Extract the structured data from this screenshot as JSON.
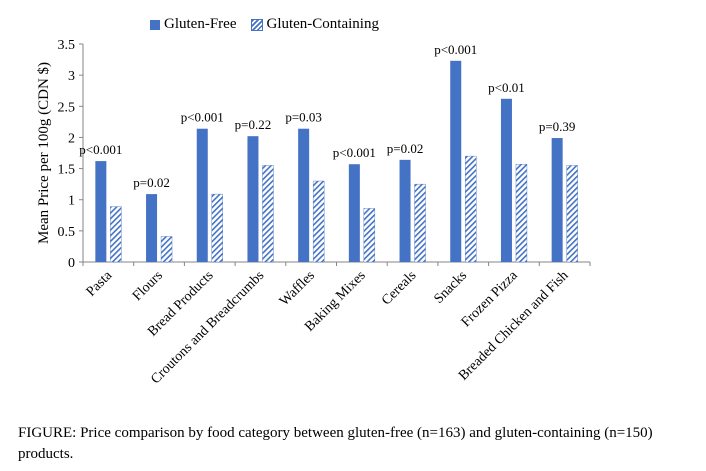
{
  "chart_data": {
    "type": "bar",
    "title": "",
    "ylabel": "Mean Price per 100g (CDN $)",
    "xlabel": "",
    "ylim": [
      0,
      3.5
    ],
    "yticks": [
      "0",
      "0.5",
      "1",
      "1.5",
      "2",
      "2.5",
      "3",
      "3.5"
    ],
    "grid": false,
    "legend_position": "top",
    "categories": [
      "Pasta",
      "Flours",
      "Bread Products",
      "Croutons and Breadcrumbs",
      "Waffles",
      "Baking Mixes",
      "Cereals",
      "Snacks",
      "Frozen Pizza",
      "Breaded Chicken and Fish"
    ],
    "series": [
      {
        "name": "Gluten-Free",
        "color": "#4472C4",
        "pattern": "solid",
        "values": [
          1.62,
          1.09,
          2.14,
          2.02,
          2.14,
          1.57,
          1.64,
          3.23,
          2.62,
          1.99
        ]
      },
      {
        "name": "Gluten-Containing",
        "color": "#4472C4",
        "pattern": "diagonal-hatch",
        "values": [
          0.89,
          0.41,
          1.09,
          1.55,
          1.3,
          0.86,
          1.25,
          1.7,
          1.57,
          1.55
        ]
      }
    ],
    "annotations": [
      "p<0.001",
      "p=0.02",
      "p<0.001",
      "p=0.22",
      "p=0.03",
      "p<0.001",
      "p=0.02",
      "p<0.001",
      "p<0.01",
      "p=0.39"
    ]
  },
  "caption": "FIGURE: Price comparison by food category between gluten-free (n=163) and gluten-containing (n=150) products."
}
